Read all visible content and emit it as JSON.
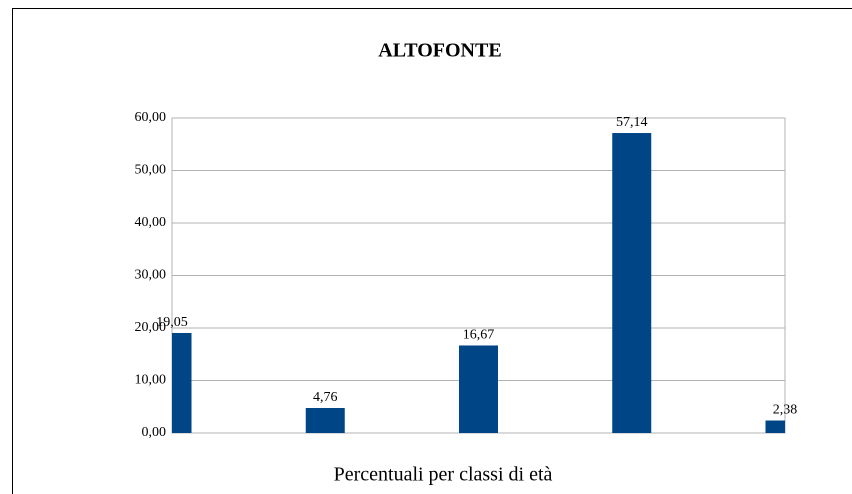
{
  "chart_data": {
    "type": "bar",
    "title": "ALTOFONTE",
    "x_label": "Percentuali per classi di età",
    "categories": [
      null,
      null,
      null,
      null,
      null
    ],
    "values": [
      19.05,
      4.76,
      16.67,
      57.14,
      2.38
    ],
    "value_labels": [
      "19,05",
      "4,76",
      "16,67",
      "57,14",
      "2,38"
    ],
    "color": "#004586",
    "ylim": [
      0,
      60
    ],
    "yticks": [
      {
        "value": 0,
        "label": "0,00"
      },
      {
        "value": 10,
        "label": "10,00"
      },
      {
        "value": 20,
        "label": "20,00"
      },
      {
        "value": 30,
        "label": "30,00"
      },
      {
        "value": 40,
        "label": "40,00"
      },
      {
        "value": 50,
        "label": "50,00"
      },
      {
        "value": 60,
        "label": "60,00"
      }
    ],
    "grid": true
  }
}
